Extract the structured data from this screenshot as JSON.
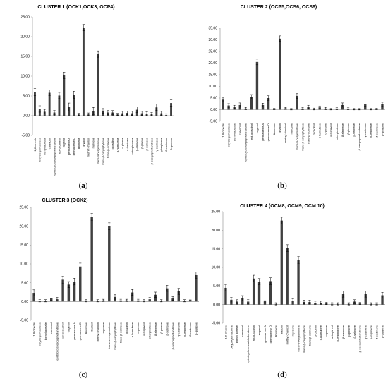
{
  "panel_labels": [
    {
      "open": "(",
      "letter": "a",
      "close": ")"
    },
    {
      "open": "(",
      "letter": "b",
      "close": ")"
    },
    {
      "open": "(",
      "letter": "c",
      "close": ")"
    },
    {
      "open": "(",
      "letter": "d",
      "close": ")"
    }
  ],
  "chart_data": [
    {
      "type": "bar",
      "title": "CLUSTER 1 (OCK1,OCK3, OCP4)",
      "ylim": [
        -5,
        25
      ],
      "yticks": [
        "-5.00",
        "0.00",
        "5.00",
        "10.00",
        "15.00",
        "20.00",
        "25.00"
      ],
      "grid": false,
      "error_bars": true,
      "bar_color": "#404040",
      "categories": [
        "1,8-cineole",
        "bicyclogermacrene",
        "bornyl acetate",
        "carvacrol",
        "epi-bicyclosesquiphellandrene",
        "epi-α-cadinol",
        "eugenol",
        "germacrene A",
        "germacrene D",
        "limonene",
        "linalool",
        "methyl chavicol",
        "myrcene",
        "trans-α-bergamotene",
        "trans-β-caryophyllene",
        "trans-β-ocimene",
        "α-cadinol",
        "α-humulene",
        "α-pinene",
        "α-terpineol",
        "α-terpinolene",
        "β-elemene",
        "β-pinene",
        "β-selinene",
        "β-sesquiphellandrene",
        "γ-cadinene",
        "γ-terpinene",
        "δ-cadinene",
        "β-guaiene"
      ],
      "values": [
        6.0,
        1.7,
        1.0,
        5.8,
        0.8,
        5.1,
        10.2,
        2.2,
        5.3,
        0.3,
        22.3,
        0.3,
        1.2,
        15.6,
        1.2,
        0.8,
        0.8,
        0.3,
        0.6,
        0.7,
        0.6,
        1.5,
        0.6,
        0.5,
        0.4,
        2.1,
        0.6,
        0.2,
        3.2
      ],
      "errors": [
        0.9,
        0.8,
        0.6,
        0.7,
        0.5,
        0.8,
        0.8,
        1.0,
        0.9,
        0.3,
        0.8,
        0.4,
        0.9,
        0.8,
        0.6,
        0.5,
        0.5,
        0.3,
        0.5,
        0.5,
        0.5,
        0.7,
        0.5,
        0.5,
        0.4,
        0.8,
        0.5,
        0.3,
        0.8
      ]
    },
    {
      "type": "bar",
      "title": "CLUSTER 2 (OCP5,OCS6, OCS6)",
      "ylim": [
        -5,
        35
      ],
      "yticks": [
        "-5.00",
        "0.00",
        "5.00",
        "10.00",
        "15.00",
        "20.00",
        "25.00",
        "30.00",
        "35.00"
      ],
      "grid": false,
      "error_bars": true,
      "bar_color": "#404040",
      "categories": [
        "1,8-cineole",
        "bicyclogermacrene",
        "bornyl acetate",
        "carvacrol",
        "epi-bicyclosesquiphellandrene",
        "epi-α-cadinol",
        "eugenol",
        "germacrene A",
        "germacrene D",
        "limonene",
        "linalool",
        "methyl chavicol",
        "myrcene",
        "trans-α-bergamotene",
        "trans-β-caryophyllene",
        "trans-β-ocimene",
        "α-cadinol",
        "α-humulene",
        "α-pinene",
        "α-terpineol",
        "α-terpinolene",
        "β-elemene",
        "β-pinene",
        "β-selinene",
        "β-sesquiphellandrene",
        "γ-cadinene",
        "γ-terpinene",
        "δ-cadinene",
        "β-guaiene"
      ],
      "values": [
        4.3,
        1.8,
        1.2,
        2.0,
        0.5,
        5.5,
        20.5,
        2.0,
        5.0,
        0.3,
        30.5,
        0.6,
        0.2,
        5.9,
        0.5,
        1.2,
        0.3,
        1.0,
        0.5,
        0.2,
        0.5,
        2.0,
        0.4,
        0.2,
        0.2,
        2.5,
        0.2,
        0.3,
        2.3
      ],
      "errors": [
        1.0,
        0.8,
        0.7,
        0.9,
        0.5,
        1.0,
        1.2,
        0.8,
        1.0,
        0.3,
        1.2,
        0.4,
        0.3,
        1.0,
        0.5,
        0.7,
        0.4,
        0.6,
        0.5,
        0.3,
        0.5,
        0.9,
        0.4,
        0.3,
        0.3,
        0.9,
        0.3,
        0.3,
        0.9
      ]
    },
    {
      "type": "bar",
      "title": "CLUSTER 3 (OCK2)",
      "ylim": [
        -5,
        25
      ],
      "yticks": [
        "-5.00",
        "0.00",
        "5.00",
        "10.00",
        "15.00",
        "20.00",
        "25.00"
      ],
      "grid": false,
      "error_bars": true,
      "bar_color": "#404040",
      "categories": [
        "1,8-cineole",
        "bicyclogermacrene",
        "bornyl acetate",
        "carvacrol",
        "epi-bicyclosesquiphellandrene",
        "epi-α-cadinol",
        "eugenol",
        "germacrene A",
        "germacrene D",
        "limonene",
        "linalool",
        "methyl chavicol",
        "myrcene",
        "trans-α-bergamotene",
        "trans-β-caryophyllene",
        "trans-β-ocimene",
        "α-cadinol",
        "α-humulene",
        "α-pinene",
        "α-terpineol",
        "α-terpinolene",
        "β-elemene",
        "β-pinene",
        "β-selinene",
        "β-sesquiphellandrene",
        "γ-cadinene",
        "γ-terpinene",
        "δ-cadinene",
        "β-guaiene"
      ],
      "values": [
        2.3,
        0.2,
        0.2,
        0.9,
        0.6,
        5.8,
        4.5,
        5.3,
        9.3,
        0.2,
        22.5,
        0.2,
        0.3,
        20.0,
        1.2,
        0.3,
        0.3,
        2.4,
        0.3,
        0.2,
        0.6,
        1.8,
        0.2,
        3.5,
        0.8,
        2.7,
        0.2,
        0.5,
        7.0
      ],
      "errors": [
        0.8,
        0.3,
        0.3,
        0.6,
        0.5,
        0.9,
        0.8,
        0.9,
        0.9,
        0.3,
        0.9,
        0.3,
        0.3,
        0.9,
        0.6,
        0.3,
        0.3,
        0.8,
        0.3,
        0.3,
        0.5,
        0.7,
        0.3,
        0.8,
        0.5,
        0.8,
        0.3,
        0.4,
        0.8
      ]
    },
    {
      "type": "bar",
      "title": "CLUSTER 4 (OCM8, OCM9, OCM 10)",
      "ylim": [
        -5,
        25
      ],
      "yticks": [
        "-5.00",
        "0.00",
        "5.00",
        "10.00",
        "15.00",
        "20.00",
        "25.00"
      ],
      "grid": false,
      "error_bars": true,
      "bar_color": "#404040",
      "categories": [
        "1,8-cineole",
        "bicyclogermacrene",
        "bornyl acetate",
        "carvacrol",
        "epi-bicyclosesquiphellandrene",
        "epi-α-cadinol",
        "eugenol",
        "germacrene A",
        "germacrene D",
        "limonene",
        "linalool",
        "methyl chavicol",
        "myrcene",
        "trans-α-bergamotene",
        "trans-β-caryophyllene",
        "trans-β-ocimene",
        "α-cadinol",
        "α-humulene",
        "α-pinene",
        "α-terpineol",
        "α-terpinolene",
        "β-elemene",
        "β-pinene",
        "β-selinene",
        "β-sesquiphellandrene",
        "γ-cadinene",
        "γ-terpinene",
        "δ-cadinene",
        "β-guaiene"
      ],
      "values": [
        4.5,
        1.3,
        0.8,
        1.7,
        0.8,
        7.0,
        6.2,
        1.1,
        6.3,
        0.2,
        22.6,
        15.2,
        1.0,
        12.0,
        0.7,
        0.7,
        0.5,
        0.5,
        0.3,
        0.2,
        0.2,
        2.8,
        0.2,
        0.8,
        0.3,
        2.8,
        0.2,
        0.2,
        2.5
      ],
      "errors": [
        0.8,
        0.6,
        0.5,
        0.7,
        0.5,
        0.9,
        0.8,
        0.6,
        0.9,
        0.3,
        0.9,
        0.9,
        0.6,
        0.9,
        0.5,
        0.5,
        0.4,
        0.4,
        0.3,
        0.3,
        0.3,
        0.8,
        0.3,
        0.5,
        0.3,
        0.8,
        0.3,
        0.3,
        0.8
      ]
    }
  ]
}
